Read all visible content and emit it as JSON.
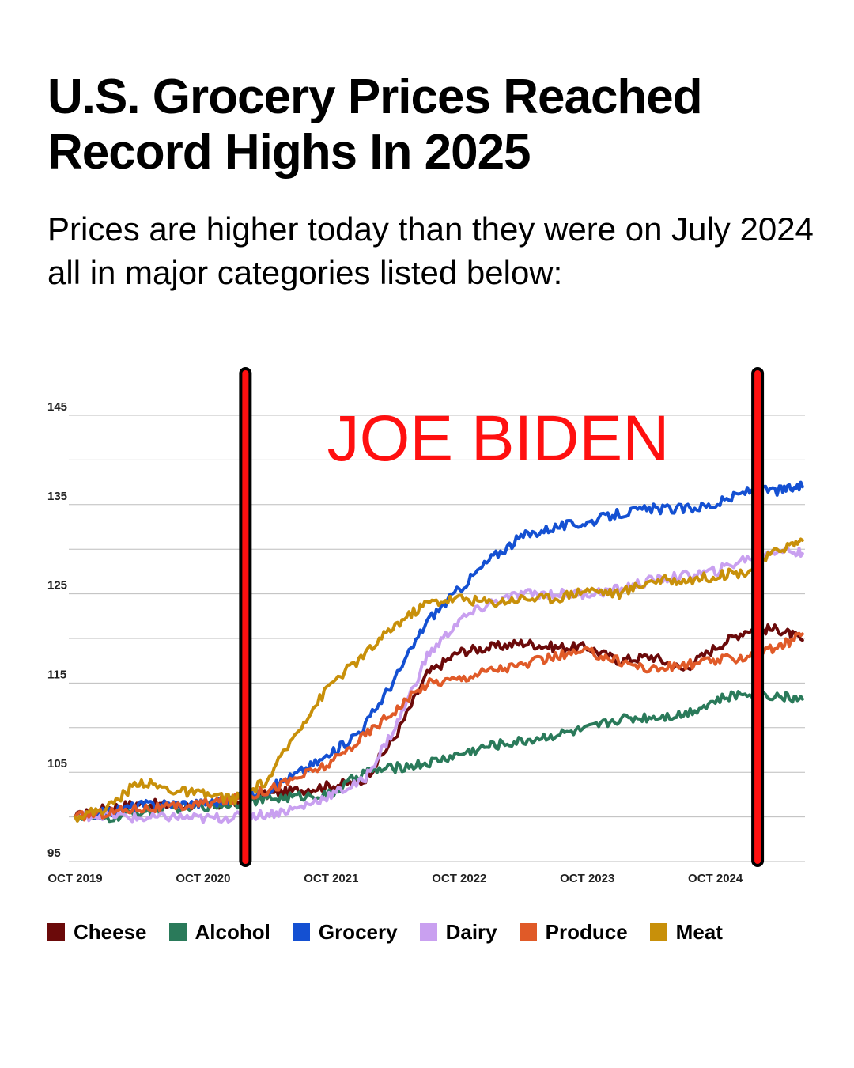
{
  "header": {
    "title": "U.S. Grocery Prices Reached Record Highs In 2025",
    "subtitle": "Prices are higher today than they were on July 2024 all in major categories listed below:"
  },
  "overlay": {
    "label": "JOE BIDEN",
    "color": "#ff1010",
    "markers_x": [
      2021.08,
      2025.08
    ]
  },
  "chart_data": {
    "type": "line",
    "title": "",
    "xlabel": "",
    "ylabel": "",
    "xlim": [
      2019.75,
      2025.45
    ],
    "ylim": [
      95,
      145
    ],
    "y_ticks": [
      {
        "value": 145,
        "label": "145"
      },
      {
        "value": 135,
        "label": "135"
      },
      {
        "value": 125,
        "label": "125"
      },
      {
        "value": 115,
        "label": "115"
      },
      {
        "value": 105,
        "label": "105"
      },
      {
        "value": 95,
        "label": "95"
      }
    ],
    "gridlines": [
      95,
      100,
      105,
      110,
      115,
      120,
      125,
      130,
      135,
      140,
      145
    ],
    "x_ticks": [
      {
        "value": 2019.75,
        "label": "OCT 2019"
      },
      {
        "value": 2020.75,
        "label": "OCT 2020"
      },
      {
        "value": 2021.75,
        "label": "OCT 2021"
      },
      {
        "value": 2022.75,
        "label": "OCT 2022"
      },
      {
        "value": 2023.75,
        "label": "OCT 2023"
      },
      {
        "value": 2024.75,
        "label": "OCT 2024"
      }
    ],
    "series": [
      {
        "name": "Cheese",
        "color": "#6b0a0a",
        "points": [
          [
            2019.75,
            100
          ],
          [
            2020.0,
            101
          ],
          [
            2020.25,
            101.5
          ],
          [
            2020.5,
            101.3
          ],
          [
            2020.75,
            101.2
          ],
          [
            2021.0,
            101.5
          ],
          [
            2021.25,
            102.5
          ],
          [
            2021.5,
            103
          ],
          [
            2021.75,
            103.5
          ],
          [
            2022.0,
            104
          ],
          [
            2022.25,
            109
          ],
          [
            2022.5,
            116
          ],
          [
            2022.75,
            118.5
          ],
          [
            2023.0,
            119
          ],
          [
            2023.25,
            119.5
          ],
          [
            2023.5,
            119
          ],
          [
            2023.75,
            119
          ],
          [
            2024.0,
            117.5
          ],
          [
            2024.25,
            118
          ],
          [
            2024.5,
            116.5
          ],
          [
            2024.75,
            119
          ],
          [
            2025.0,
            121
          ],
          [
            2025.25,
            121
          ],
          [
            2025.43,
            119.8
          ]
        ]
      },
      {
        "name": "Alcohol",
        "color": "#2a7a5a",
        "points": [
          [
            2019.75,
            100
          ],
          [
            2020.0,
            99.8
          ],
          [
            2020.25,
            100.5
          ],
          [
            2020.5,
            101
          ],
          [
            2020.75,
            101.2
          ],
          [
            2021.0,
            101.5
          ],
          [
            2021.25,
            102
          ],
          [
            2021.5,
            102.3
          ],
          [
            2021.75,
            102.5
          ],
          [
            2022.0,
            105
          ],
          [
            2022.25,
            105.5
          ],
          [
            2022.5,
            106
          ],
          [
            2022.75,
            107
          ],
          [
            2023.0,
            108
          ],
          [
            2023.25,
            108.5
          ],
          [
            2023.5,
            109.2
          ],
          [
            2023.75,
            109.8
          ],
          [
            2024.0,
            111
          ],
          [
            2024.25,
            111.2
          ],
          [
            2024.5,
            111.5
          ],
          [
            2024.75,
            113
          ],
          [
            2025.0,
            114
          ],
          [
            2025.25,
            113.5
          ],
          [
            2025.43,
            113.2
          ]
        ]
      },
      {
        "name": "Grocery",
        "color": "#1450d2",
        "points": [
          [
            2019.75,
            100
          ],
          [
            2020.0,
            100.5
          ],
          [
            2020.25,
            101.3
          ],
          [
            2020.5,
            101.5
          ],
          [
            2020.75,
            101.5
          ],
          [
            2021.0,
            102
          ],
          [
            2021.25,
            103
          ],
          [
            2021.5,
            105
          ],
          [
            2021.75,
            107
          ],
          [
            2022.0,
            110
          ],
          [
            2022.25,
            115.5
          ],
          [
            2022.5,
            122
          ],
          [
            2022.75,
            125.5
          ],
          [
            2023.0,
            129
          ],
          [
            2023.25,
            131.5
          ],
          [
            2023.5,
            132.5
          ],
          [
            2023.75,
            133
          ],
          [
            2024.0,
            134
          ],
          [
            2024.25,
            134.5
          ],
          [
            2024.5,
            134.5
          ],
          [
            2024.75,
            135
          ],
          [
            2025.0,
            136.5
          ],
          [
            2025.25,
            136.6
          ],
          [
            2025.43,
            137
          ]
        ]
      },
      {
        "name": "Dairy",
        "color": "#c9a0f0",
        "points": [
          [
            2019.75,
            100
          ],
          [
            2020.0,
            100.3
          ],
          [
            2020.25,
            99.8
          ],
          [
            2020.5,
            100
          ],
          [
            2020.75,
            99.8
          ],
          [
            2021.0,
            100
          ],
          [
            2021.25,
            100.3
          ],
          [
            2021.5,
            101
          ],
          [
            2021.75,
            102.5
          ],
          [
            2022.0,
            104
          ],
          [
            2022.25,
            110
          ],
          [
            2022.5,
            118
          ],
          [
            2022.75,
            122
          ],
          [
            2023.0,
            124
          ],
          [
            2023.25,
            125
          ],
          [
            2023.5,
            125
          ],
          [
            2023.75,
            125
          ],
          [
            2024.0,
            125.5
          ],
          [
            2024.25,
            126.5
          ],
          [
            2024.5,
            127
          ],
          [
            2024.75,
            127.5
          ],
          [
            2025.0,
            129
          ],
          [
            2025.25,
            130
          ],
          [
            2025.43,
            129.5
          ]
        ]
      },
      {
        "name": "Produce",
        "color": "#e05a28",
        "points": [
          [
            2019.75,
            100
          ],
          [
            2020.0,
            100.5
          ],
          [
            2020.25,
            101
          ],
          [
            2020.5,
            101
          ],
          [
            2020.75,
            101.5
          ],
          [
            2021.0,
            102
          ],
          [
            2021.25,
            103
          ],
          [
            2021.5,
            104.5
          ],
          [
            2021.75,
            106
          ],
          [
            2022.0,
            109
          ],
          [
            2022.25,
            112
          ],
          [
            2022.5,
            115
          ],
          [
            2022.75,
            115.5
          ],
          [
            2023.0,
            116.5
          ],
          [
            2023.25,
            117
          ],
          [
            2023.5,
            118
          ],
          [
            2023.75,
            118.5
          ],
          [
            2024.0,
            117.5
          ],
          [
            2024.25,
            116.5
          ],
          [
            2024.5,
            117
          ],
          [
            2024.75,
            117.5
          ],
          [
            2025.0,
            118
          ],
          [
            2025.25,
            119
          ],
          [
            2025.43,
            120.5
          ]
        ]
      },
      {
        "name": "Meat",
        "color": "#c8900a",
        "points": [
          [
            2019.75,
            100
          ],
          [
            2020.0,
            101
          ],
          [
            2020.25,
            104
          ],
          [
            2020.5,
            103
          ],
          [
            2020.75,
            102.5
          ],
          [
            2021.0,
            102
          ],
          [
            2021.25,
            104
          ],
          [
            2021.5,
            110
          ],
          [
            2021.75,
            115
          ],
          [
            2022.0,
            118
          ],
          [
            2022.25,
            121.5
          ],
          [
            2022.5,
            124
          ],
          [
            2022.75,
            124.5
          ],
          [
            2023.0,
            124
          ],
          [
            2023.25,
            124.5
          ],
          [
            2023.5,
            124.5
          ],
          [
            2023.75,
            125.5
          ],
          [
            2024.0,
            125
          ],
          [
            2024.25,
            126.5
          ],
          [
            2024.5,
            126.5
          ],
          [
            2024.75,
            127
          ],
          [
            2025.0,
            127.5
          ],
          [
            2025.25,
            130
          ],
          [
            2025.43,
            131
          ]
        ]
      }
    ]
  },
  "legend": {
    "items": [
      {
        "label": "Cheese",
        "color": "#6b0a0a"
      },
      {
        "label": "Alcohol",
        "color": "#2a7a5a"
      },
      {
        "label": "Grocery",
        "color": "#1450d2"
      },
      {
        "label": "Dairy",
        "color": "#c9a0f0"
      },
      {
        "label": "Produce",
        "color": "#e05a28"
      },
      {
        "label": "Meat",
        "color": "#c8900a"
      }
    ]
  }
}
